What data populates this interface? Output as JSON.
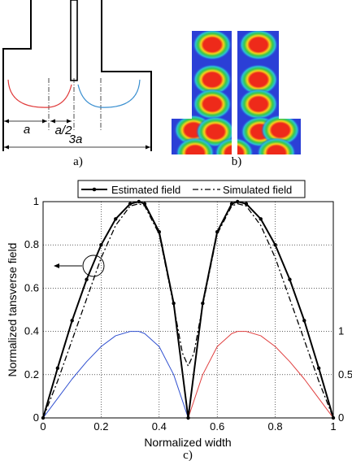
{
  "panel_a": {
    "label_a": "a",
    "label_a_half": "a/2",
    "label_3a": "3a",
    "caption": "a)",
    "colors": {
      "left_curve": "#e03a3a",
      "right_curve": "#3a8fd0",
      "outline": "#000000"
    }
  },
  "panel_b": {
    "caption": "b)",
    "colors": {
      "background": "#2b3fd6",
      "hot": "#ee2a1a",
      "warm": "#f7d21a",
      "mid": "#38c94a",
      "cool": "#2bc0d8"
    }
  },
  "panel_c": {
    "caption": "c)"
  },
  "chart_data": {
    "type": "line",
    "xlabel": "Normalized width",
    "ylabel": "Normalized tansverse field",
    "xlim": [
      0,
      1
    ],
    "ylim": [
      0,
      1
    ],
    "x_ticks": [
      "0",
      "0.2",
      "0.4",
      "0.6",
      "0.8",
      "1"
    ],
    "y_ticks": [
      "0",
      "0.2",
      "0.4",
      "0.6",
      "0.8",
      "1"
    ],
    "right_ticks": [
      "0",
      "0.5",
      "1"
    ],
    "grid": true,
    "legend_position": "top",
    "series": [
      {
        "name": "Estimated field",
        "style": "solid with dot markers",
        "color": "#000000",
        "x": [
          0,
          0.05,
          0.1,
          0.15,
          0.2,
          0.25,
          0.3,
          0.33,
          0.35,
          0.4,
          0.45,
          0.5,
          0.55,
          0.6,
          0.65,
          0.67,
          0.7,
          0.75,
          0.8,
          0.85,
          0.9,
          0.95,
          1
        ],
        "y": [
          0,
          0.23,
          0.45,
          0.64,
          0.8,
          0.92,
          0.99,
          1.0,
          0.99,
          0.86,
          0.53,
          0,
          0.53,
          0.86,
          0.99,
          1.0,
          0.99,
          0.92,
          0.8,
          0.64,
          0.45,
          0.23,
          0
        ]
      },
      {
        "name": "Simulated field",
        "style": "dash-dot",
        "color": "#000000",
        "x": [
          0,
          0.05,
          0.1,
          0.15,
          0.2,
          0.25,
          0.3,
          0.33,
          0.35,
          0.4,
          0.45,
          0.48,
          0.5,
          0.52,
          0.55,
          0.6,
          0.65,
          0.67,
          0.7,
          0.75,
          0.8,
          0.85,
          0.9,
          0.95,
          1
        ],
        "y": [
          0,
          0.17,
          0.36,
          0.55,
          0.74,
          0.89,
          0.98,
          0.99,
          0.98,
          0.85,
          0.52,
          0.3,
          0.24,
          0.3,
          0.52,
          0.85,
          0.98,
          0.99,
          0.98,
          0.89,
          0.74,
          0.55,
          0.36,
          0.17,
          0
        ]
      },
      {
        "style": "thin solid",
        "color": "#3050d0",
        "axis": "right",
        "x": [
          0,
          0.05,
          0.1,
          0.15,
          0.2,
          0.25,
          0.3,
          0.33,
          0.35,
          0.4,
          0.45,
          0.5
        ],
        "y": [
          0,
          0.09,
          0.18,
          0.26,
          0.33,
          0.38,
          0.4,
          0.4,
          0.39,
          0.33,
          0.2,
          0
        ]
      },
      {
        "style": "thin solid",
        "color": "#e04040",
        "axis": "right",
        "x": [
          0.5,
          0.55,
          0.6,
          0.65,
          0.67,
          0.7,
          0.75,
          0.8,
          0.85,
          0.9,
          0.95,
          1
        ],
        "y": [
          0,
          0.2,
          0.33,
          0.39,
          0.4,
          0.4,
          0.38,
          0.33,
          0.26,
          0.18,
          0.09,
          0
        ]
      }
    ]
  }
}
